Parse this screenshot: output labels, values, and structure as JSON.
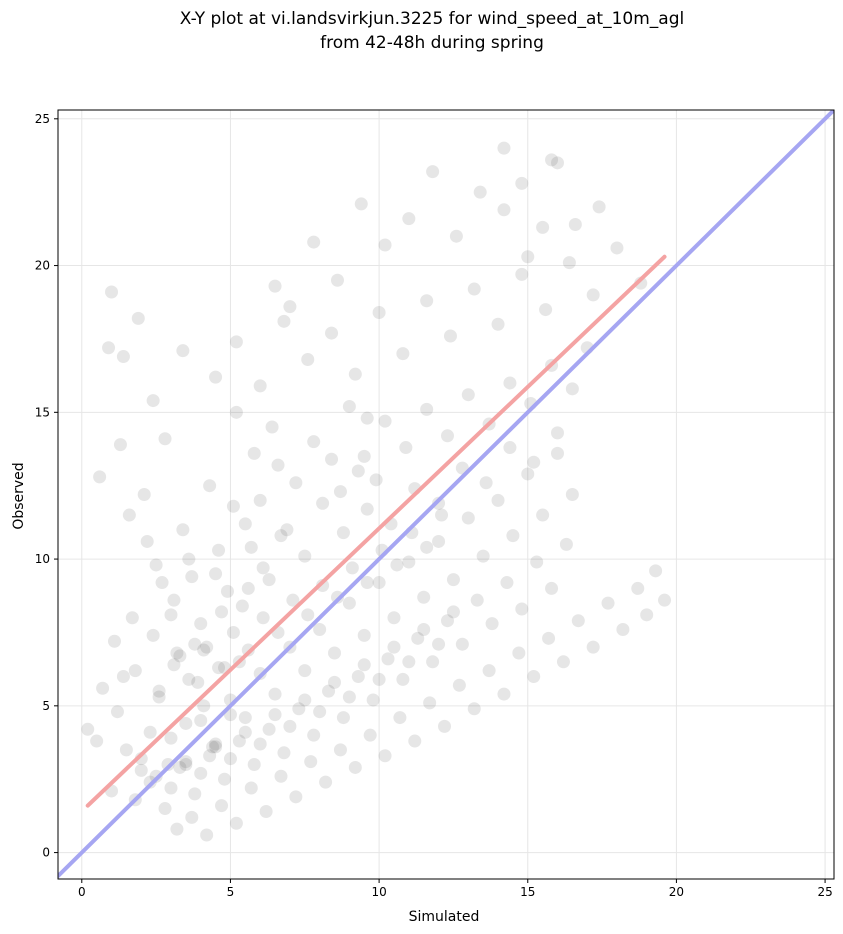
{
  "chart_data": {
    "type": "scatter",
    "title_lines": [
      "X-Y plot at vi.landsvirkjun.3225 for wind_speed_at_10m_agl",
      "from 42-48h during spring"
    ],
    "xlabel": "Simulated",
    "ylabel": "Observed",
    "xlim": [
      -0.8,
      25.3
    ],
    "ylim": [
      -0.9,
      25.3
    ],
    "xticks": [
      0,
      5,
      10,
      15,
      20,
      25
    ],
    "yticks": [
      0,
      5,
      10,
      15,
      20,
      25
    ],
    "grid": true,
    "point_color": "#555555",
    "point_opacity": 0.15,
    "lines": [
      {
        "name": "regression",
        "color": "#f4a3a3",
        "x": [
          0.2,
          19.6
        ],
        "y": [
          1.6,
          20.3
        ]
      },
      {
        "name": "one-to-one",
        "color": "#a6a6f2",
        "x": [
          -0.8,
          25.3
        ],
        "y": [
          -0.8,
          25.3
        ]
      }
    ],
    "points": {
      "x": [
        0.2,
        0.5,
        0.7,
        1.0,
        1.2,
        1.5,
        1.8,
        2.0,
        2.3,
        2.6,
        2.9,
        3.2,
        3.5,
        3.8,
        4.1,
        4.4,
        4.7,
        5.0,
        5.3,
        5.6,
        0.6,
        0.9,
        1.3,
        1.6,
        2.1,
        2.5,
        2.8,
        3.1,
        3.4,
        3.7,
        4.0,
        4.3,
        4.6,
        4.9,
        5.2,
        5.5,
        5.8,
        6.1,
        6.4,
        6.7,
        1.1,
        1.4,
        1.7,
        2.2,
        2.4,
        2.7,
        3.0,
        3.3,
        3.6,
        3.9,
        4.2,
        4.5,
        4.8,
        5.1,
        5.4,
        5.7,
        6.0,
        6.3,
        6.6,
        6.9,
        7.2,
        7.5,
        7.8,
        8.1,
        8.4,
        8.7,
        9.0,
        9.3,
        9.6,
        9.9,
        2.0,
        2.5,
        3.0,
        3.5,
        4.0,
        4.5,
        5.0,
        5.5,
        6.0,
        6.5,
        7.0,
        7.5,
        8.0,
        8.5,
        9.0,
        9.5,
        10.0,
        10.5,
        11.0,
        11.5,
        12.0,
        12.5,
        13.0,
        13.5,
        14.0,
        14.5,
        15.0,
        15.5,
        16.0,
        16.5,
        1.8,
        2.3,
        2.8,
        3.3,
        3.8,
        4.3,
        4.8,
        5.3,
        5.8,
        6.3,
        6.8,
        7.3,
        7.8,
        8.3,
        8.8,
        9.3,
        9.8,
        10.3,
        10.8,
        11.3,
        11.8,
        12.3,
        12.8,
        13.3,
        13.8,
        14.3,
        14.8,
        15.3,
        15.8,
        16.3,
        3.2,
        3.7,
        4.2,
        4.7,
        5.2,
        5.7,
        6.2,
        6.7,
        7.2,
        7.7,
        8.2,
        8.7,
        9.2,
        9.7,
        10.2,
        10.7,
        11.2,
        11.7,
        12.2,
        12.7,
        13.2,
        13.7,
        14.2,
        14.7,
        15.2,
        15.7,
        16.2,
        16.7,
        17.2,
        17.7,
        18.2,
        18.7,
        19.0,
        19.3,
        19.6,
        1.0,
        1.4,
        1.9,
        2.4,
        3.4,
        6.5,
        7.0,
        7.8,
        8.6,
        9.4,
        10.2,
        11.0,
        11.8,
        12.6,
        13.4,
        14.2,
        15.0,
        15.8,
        16.6,
        17.4,
        4.5,
        5.2,
        6.0,
        6.8,
        7.6,
        8.4,
        9.2,
        10.0,
        10.8,
        11.6,
        12.4,
        13.2,
        14.0,
        14.8,
        15.6,
        16.4,
        17.2,
        18.0,
        18.8,
        14.2,
        14.8,
        15.5,
        16.0,
        9.5,
        10.2,
        10.9,
        11.6,
        12.3,
        13.0,
        13.7,
        14.4,
        15.1,
        15.8,
        16.5,
        17.0,
        8.8,
        9.6,
        10.4,
        11.2,
        12.0,
        12.8,
        13.6,
        14.4,
        15.2,
        16.0,
        2.6,
        3.1,
        3.6,
        4.1,
        4.6,
        5.1,
        5.6,
        6.1,
        6.6,
        7.1,
        7.6,
        8.1,
        8.6,
        9.1,
        9.6,
        10.1,
        10.6,
        11.1,
        11.6,
        12.1,
        3.0,
        3.5,
        4.0,
        4.5,
        5.0,
        5.5,
        6.0,
        6.5,
        7.0,
        7.5,
        8.0,
        8.5,
        9.0,
        9.5,
        10.0,
        10.5,
        11.0,
        11.5,
        12.0,
        12.5
      ],
      "y": [
        4.2,
        3.8,
        5.6,
        2.1,
        4.8,
        3.5,
        6.2,
        2.8,
        4.1,
        5.3,
        3.0,
        6.8,
        4.4,
        7.1,
        5.0,
        3.6,
        8.2,
        4.7,
        6.5,
        9.0,
        12.8,
        17.2,
        13.9,
        11.5,
        12.2,
        9.8,
        14.1,
        8.6,
        11.0,
        9.4,
        7.8,
        12.5,
        10.3,
        8.9,
        15.0,
        11.2,
        13.6,
        9.7,
        14.5,
        10.8,
        7.2,
        6.0,
        8.0,
        10.6,
        7.4,
        9.2,
        8.1,
        6.7,
        10.0,
        5.8,
        7.0,
        9.5,
        6.3,
        11.8,
        8.4,
        10.4,
        12.0,
        9.3,
        13.2,
        11.0,
        12.6,
        10.1,
        14.0,
        11.9,
        13.4,
        12.3,
        15.2,
        13.0,
        14.8,
        12.7,
        3.2,
        2.6,
        3.9,
        3.1,
        4.5,
        3.7,
        5.2,
        4.6,
        6.1,
        5.4,
        7.0,
        6.2,
        7.6,
        6.8,
        8.5,
        7.4,
        9.2,
        8.0,
        9.9,
        8.7,
        10.6,
        9.3,
        11.4,
        10.1,
        12.0,
        10.8,
        12.9,
        11.5,
        13.6,
        12.2,
        1.8,
        2.4,
        1.5,
        2.9,
        2.0,
        3.3,
        2.5,
        3.8,
        3.0,
        4.2,
        3.4,
        4.9,
        4.0,
        5.5,
        4.6,
        6.0,
        5.2,
        6.6,
        5.9,
        7.3,
        6.5,
        7.9,
        7.1,
        8.6,
        7.8,
        9.2,
        8.3,
        9.9,
        9.0,
        10.5,
        0.8,
        1.2,
        0.6,
        1.6,
        1.0,
        2.2,
        1.4,
        2.6,
        1.9,
        3.1,
        2.4,
        3.5,
        2.9,
        4.0,
        3.3,
        4.6,
        3.8,
        5.1,
        4.3,
        5.7,
        4.9,
        6.2,
        5.4,
        6.8,
        6.0,
        7.3,
        6.5,
        7.9,
        7.0,
        8.5,
        7.6,
        9.0,
        8.1,
        9.6,
        8.6,
        19.1,
        16.9,
        18.2,
        15.4,
        17.1,
        19.3,
        18.6,
        20.8,
        19.5,
        22.1,
        20.7,
        21.6,
        23.2,
        21.0,
        22.5,
        21.9,
        20.3,
        23.6,
        21.4,
        22.0,
        16.2,
        17.4,
        15.9,
        18.1,
        16.8,
        17.7,
        16.3,
        18.4,
        17.0,
        18.8,
        17.6,
        19.2,
        18.0,
        19.7,
        18.5,
        20.1,
        19.0,
        20.6,
        19.4,
        24.0,
        22.8,
        21.3,
        23.5,
        13.5,
        14.7,
        13.8,
        15.1,
        14.2,
        15.6,
        14.6,
        16.0,
        15.3,
        16.6,
        15.8,
        17.2,
        10.9,
        11.7,
        11.2,
        12.4,
        11.9,
        13.1,
        12.6,
        13.8,
        13.3,
        14.3,
        5.5,
        6.4,
        5.9,
        6.9,
        6.3,
        7.5,
        6.9,
        8.0,
        7.5,
        8.6,
        8.1,
        9.1,
        8.7,
        9.7,
        9.2,
        10.3,
        9.8,
        10.9,
        10.4,
        11.5,
        2.2,
        3.0,
        2.7,
        3.6,
        3.2,
        4.1,
        3.7,
        4.7,
        4.3,
        5.2,
        4.8,
        5.8,
        5.3,
        6.4,
        5.9,
        7.0,
        6.5,
        7.6,
        7.1,
        8.2
      ]
    }
  }
}
